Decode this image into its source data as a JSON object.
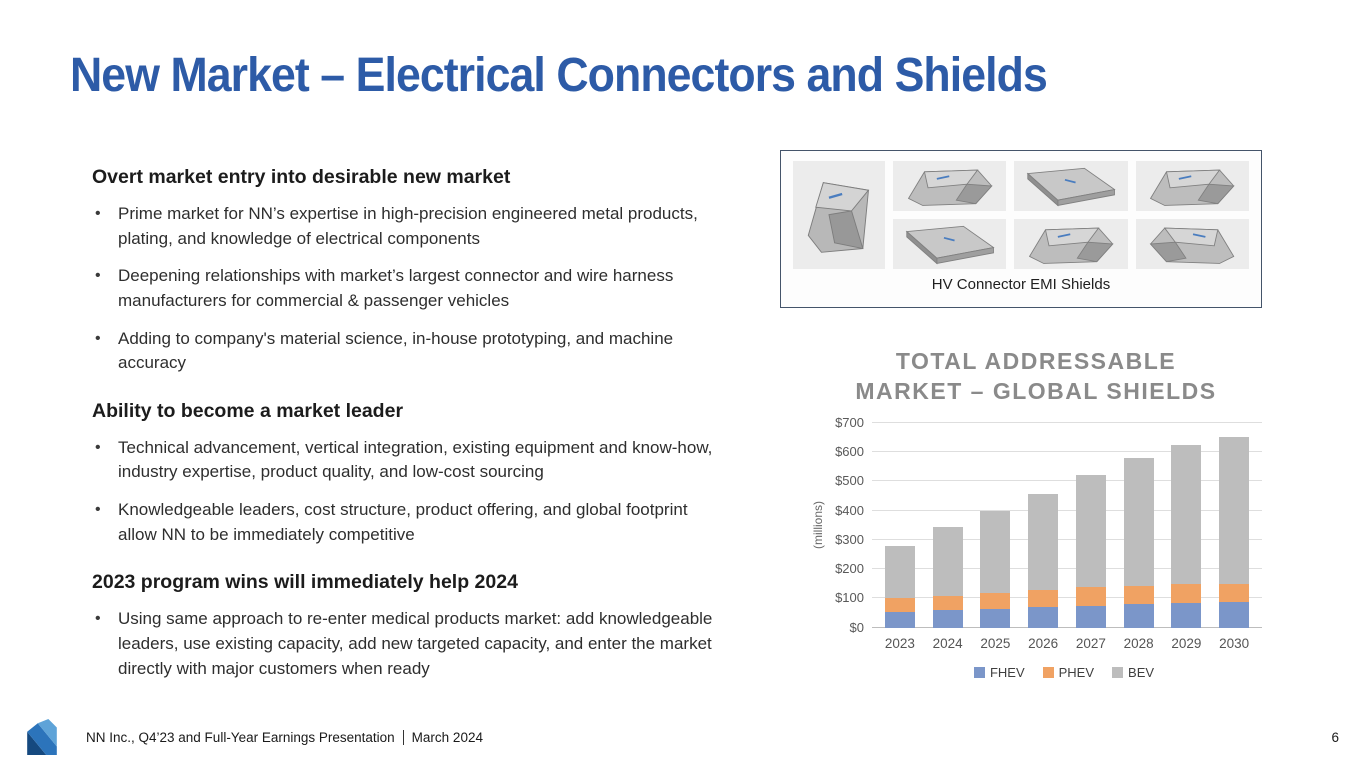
{
  "slide": {
    "title": "New Market – Electrical Connectors and Shields",
    "footer_text": "NN Inc., Q4’23 and Full-Year Earnings Presentation",
    "footer_date": "March 2024",
    "page_number": "6"
  },
  "left_content": {
    "sections": [
      {
        "heading": "Overt market entry into desirable new market",
        "bullets": [
          "Prime market for NN’s expertise in high-precision engineered metal products, plating, and knowledge of electrical components",
          "Deepening relationships with market’s largest connector and wire harness manufacturers for commercial & passenger vehicles",
          "Adding to company's material science, in-house prototyping, and machine accuracy"
        ]
      },
      {
        "heading": "Ability to become a market leader",
        "bullets": [
          "Technical advancement, vertical integration, existing equipment and know-how, industry expertise, product quality, and low-cost sourcing",
          "Knowledgeable leaders, cost structure, product offering, and global footprint allow NN to be immediately competitive"
        ]
      },
      {
        "heading": "2023 program wins will immediately help 2024",
        "bullets": [
          "Using same approach to re-enter medical products market: add knowledgeable leaders, use existing capacity, add new targeted capacity, and enter the market directly with major customers when ready"
        ]
      }
    ]
  },
  "image_panel": {
    "caption": "HV Connector EMI Shields",
    "thumbnail_count": 7
  },
  "chart_data": {
    "type": "bar",
    "stacked": true,
    "title": "TOTAL ADDRESSABLE MARKET – GLOBAL SHIELDS",
    "title_lines": [
      "TOTAL ADDRESSABLE",
      "MARKET – GLOBAL SHIELDS"
    ],
    "ylabel": "(millions)",
    "xlabel": "",
    "categories": [
      "2023",
      "2024",
      "2025",
      "2026",
      "2027",
      "2028",
      "2029",
      "2030"
    ],
    "series": [
      {
        "name": "FHEV",
        "color": "#7b96c9",
        "values": [
          55,
          60,
          65,
          70,
          75,
          80,
          85,
          87
        ]
      },
      {
        "name": "PHEV",
        "color": "#f0a263",
        "values": [
          45,
          50,
          55,
          60,
          63,
          64,
          64,
          63
        ]
      },
      {
        "name": "BEV",
        "color": "#bdbdbd",
        "values": [
          180,
          233,
          278,
          327,
          382,
          435,
          476,
          501
        ]
      }
    ],
    "totals": [
      280,
      343,
      398,
      457,
      520,
      579,
      625,
      651
    ],
    "ylim": [
      0,
      700
    ],
    "ytick_step": 100,
    "ytick_labels": [
      "$0",
      "$100",
      "$200",
      "$300",
      "$400",
      "$500",
      "$600",
      "$700"
    ],
    "grid": true,
    "legend_position": "bottom"
  },
  "colors": {
    "title_blue": "#2d5ba7",
    "panel_border": "#44546a",
    "chart_title_gray": "#8a8a8a"
  }
}
